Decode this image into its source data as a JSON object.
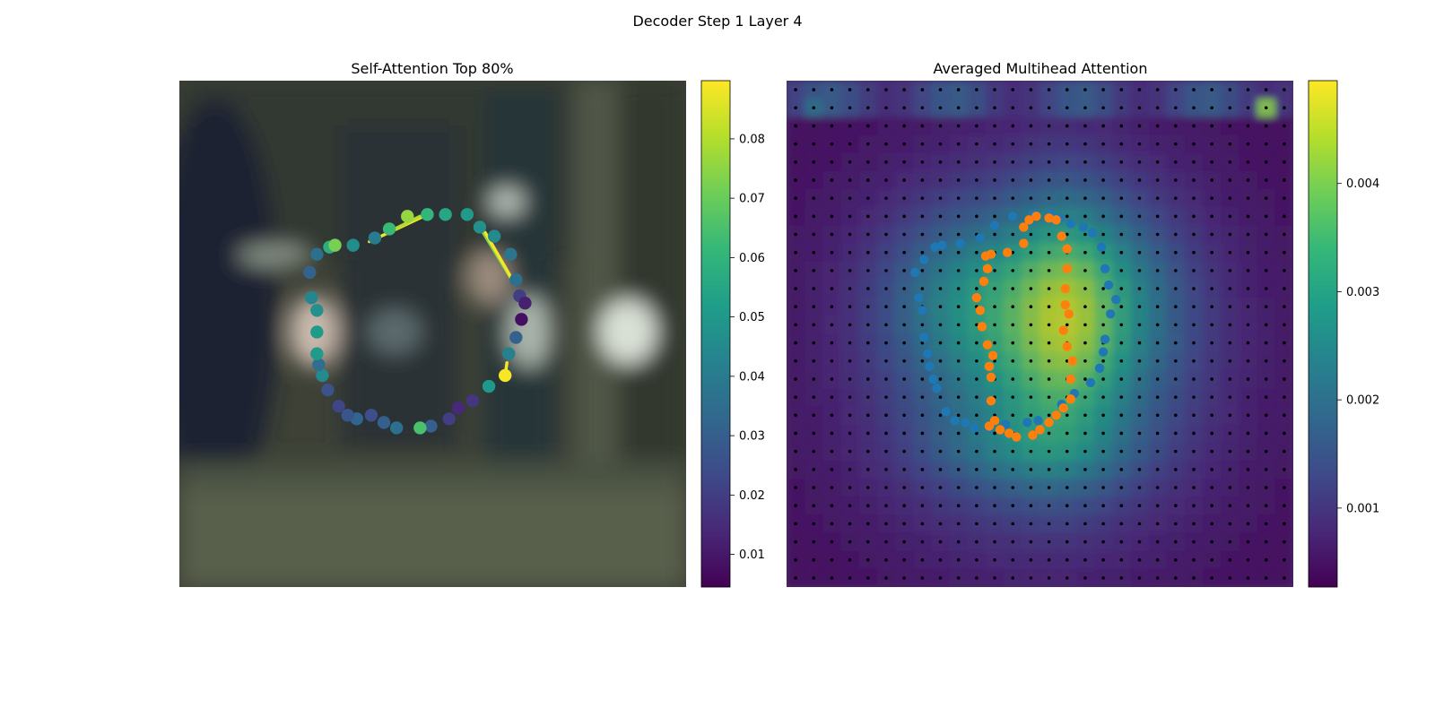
{
  "figure": {
    "suptitle": "Decoder Step 1 Layer 4"
  },
  "colormap": [
    "#440154",
    "#482878",
    "#3e4a89",
    "#31688e",
    "#26828e",
    "#1f9e89",
    "#35b779",
    "#6ece58",
    "#b5de2b",
    "#fde725"
  ],
  "chart_data": [
    {
      "type": "scatter",
      "title": "Self-Attention Top 80%",
      "background": "blurred photo of a dark industrial machine interior",
      "axes_visible": false,
      "colorbar": {
        "ticks": [
          0.01,
          0.02,
          0.03,
          0.04,
          0.05,
          0.06,
          0.07,
          0.08
        ],
        "range": [
          0.0045,
          0.0898
        ]
      },
      "xlim": [
        0,
        28
      ],
      "ylim": [
        28,
        0
      ],
      "points": [
        {
          "x": 14.7,
          "y": 7.4,
          "v": 0.055
        },
        {
          "x": 15.9,
          "y": 7.4,
          "v": 0.051
        },
        {
          "x": 16.6,
          "y": 8.1,
          "v": 0.047
        },
        {
          "x": 17.4,
          "y": 8.6,
          "v": 0.045
        },
        {
          "x": 18.3,
          "y": 9.6,
          "v": 0.038
        },
        {
          "x": 18.6,
          "y": 11.0,
          "v": 0.036
        },
        {
          "x": 18.8,
          "y": 11.9,
          "v": 0.02
        },
        {
          "x": 19.1,
          "y": 12.3,
          "v": 0.012
        },
        {
          "x": 18.9,
          "y": 13.2,
          "v": 0.008
        },
        {
          "x": 18.6,
          "y": 14.2,
          "v": 0.031
        },
        {
          "x": 18.2,
          "y": 15.1,
          "v": 0.042
        },
        {
          "x": 18.0,
          "y": 16.3,
          "v": 0.089
        },
        {
          "x": 17.1,
          "y": 16.9,
          "v": 0.05
        },
        {
          "x": 16.2,
          "y": 17.7,
          "v": 0.018
        },
        {
          "x": 15.4,
          "y": 18.1,
          "v": 0.014
        },
        {
          "x": 14.9,
          "y": 18.7,
          "v": 0.02
        },
        {
          "x": 13.9,
          "y": 19.1,
          "v": 0.03
        },
        {
          "x": 13.3,
          "y": 19.2,
          "v": 0.065
        },
        {
          "x": 12.0,
          "y": 19.2,
          "v": 0.036
        },
        {
          "x": 11.3,
          "y": 18.9,
          "v": 0.03
        },
        {
          "x": 10.6,
          "y": 18.5,
          "v": 0.025
        },
        {
          "x": 9.8,
          "y": 18.7,
          "v": 0.032
        },
        {
          "x": 9.3,
          "y": 18.5,
          "v": 0.027
        },
        {
          "x": 8.8,
          "y": 18.0,
          "v": 0.022
        },
        {
          "x": 8.2,
          "y": 17.1,
          "v": 0.026
        },
        {
          "x": 7.9,
          "y": 16.3,
          "v": 0.045
        },
        {
          "x": 7.7,
          "y": 15.7,
          "v": 0.035
        },
        {
          "x": 7.6,
          "y": 15.1,
          "v": 0.051
        },
        {
          "x": 7.6,
          "y": 13.9,
          "v": 0.051
        },
        {
          "x": 7.6,
          "y": 12.7,
          "v": 0.047
        },
        {
          "x": 7.3,
          "y": 12.0,
          "v": 0.044
        },
        {
          "x": 7.2,
          "y": 10.6,
          "v": 0.031
        },
        {
          "x": 7.6,
          "y": 9.6,
          "v": 0.036
        },
        {
          "x": 8.3,
          "y": 9.2,
          "v": 0.058
        },
        {
          "x": 8.6,
          "y": 9.1,
          "v": 0.072
        },
        {
          "x": 9.6,
          "y": 9.1,
          "v": 0.046
        },
        {
          "x": 10.8,
          "y": 8.7,
          "v": 0.04
        },
        {
          "x": 11.6,
          "y": 8.2,
          "v": 0.062
        },
        {
          "x": 12.6,
          "y": 7.5,
          "v": 0.076
        },
        {
          "x": 13.7,
          "y": 7.4,
          "v": 0.061
        }
      ],
      "segments": [
        {
          "from": [
            10.5,
            8.9
          ],
          "to": [
            13.5,
            7.5
          ],
          "v": 0.089
        },
        {
          "from": [
            11.5,
            8.4
          ],
          "to": [
            13.3,
            7.5
          ],
          "v": 0.08
        },
        {
          "from": [
            16.6,
            8.1
          ],
          "to": [
            18.3,
            10.9
          ],
          "v": 0.072
        },
        {
          "from": [
            16.9,
            8.4
          ],
          "to": [
            18.4,
            11.0
          ],
          "v": 0.089
        },
        {
          "from": [
            18.1,
            15.6
          ],
          "to": [
            18.0,
            16.3
          ],
          "v": 0.089
        }
      ]
    },
    {
      "type": "heatmap",
      "title": "Averaged Multihead Attention",
      "axes_visible": false,
      "grid_size": [
        28,
        28
      ],
      "colorbar": {
        "ticks": [
          0.001,
          0.002,
          0.003,
          0.004
        ],
        "range": [
          0.00027,
          0.00495
        ]
      },
      "overlay_series": [
        {
          "color": "#1f77b4",
          "points": [
            [
              14.6,
              7.4
            ],
            [
              15.1,
              7.6
            ],
            [
              15.7,
              7.9
            ],
            [
              16.4,
              8.1
            ],
            [
              16.9,
              8.4
            ],
            [
              17.4,
              9.2
            ],
            [
              17.6,
              10.4
            ],
            [
              17.8,
              11.3
            ],
            [
              18.2,
              12.1
            ],
            [
              17.9,
              12.9
            ],
            [
              17.6,
              14.3
            ],
            [
              17.5,
              15.0
            ],
            [
              17.3,
              15.9
            ],
            [
              16.8,
              16.7
            ],
            [
              15.9,
              17.3
            ],
            [
              15.2,
              17.9
            ],
            [
              13.9,
              18.8
            ],
            [
              13.3,
              18.9
            ],
            [
              12.1,
              19.0
            ],
            [
              11.2,
              19.2
            ],
            [
              10.4,
              19.2
            ],
            [
              9.9,
              18.9
            ],
            [
              9.3,
              18.8
            ],
            [
              8.8,
              18.3
            ],
            [
              8.3,
              17.0
            ],
            [
              8.1,
              16.5
            ],
            [
              7.9,
              15.8
            ],
            [
              7.8,
              15.1
            ],
            [
              7.6,
              14.2
            ],
            [
              7.5,
              12.7
            ],
            [
              7.3,
              12.0
            ],
            [
              7.1,
              10.6
            ],
            [
              7.6,
              9.9
            ],
            [
              8.2,
              9.2
            ],
            [
              8.6,
              9.1
            ],
            [
              9.6,
              9.0
            ],
            [
              10.7,
              8.7
            ],
            [
              11.5,
              8.0
            ],
            [
              12.5,
              7.5
            ],
            [
              13.6,
              7.4
            ]
          ]
        },
        {
          "color": "#ff7f0e",
          "points": [
            [
              14.5,
              7.6
            ],
            [
              14.9,
              7.7
            ],
            [
              15.2,
              8.6
            ],
            [
              15.5,
              9.3
            ],
            [
              15.5,
              10.4
            ],
            [
              15.4,
              11.5
            ],
            [
              15.4,
              12.4
            ],
            [
              15.6,
              12.9
            ],
            [
              15.3,
              13.8
            ],
            [
              15.5,
              14.7
            ],
            [
              15.8,
              15.5
            ],
            [
              15.7,
              16.5
            ],
            [
              15.7,
              17.6
            ],
            [
              15.3,
              18.1
            ],
            [
              14.9,
              18.5
            ],
            [
              14.5,
              18.9
            ],
            [
              14.0,
              19.3
            ],
            [
              13.6,
              19.6
            ],
            [
              12.7,
              19.7
            ],
            [
              12.3,
              19.5
            ],
            [
              11.8,
              19.3
            ],
            [
              11.5,
              18.8
            ],
            [
              11.2,
              19.1
            ],
            [
              11.3,
              17.7
            ],
            [
              11.3,
              16.4
            ],
            [
              11.2,
              15.8
            ],
            [
              11.4,
              15.2
            ],
            [
              11.1,
              14.6
            ],
            [
              10.8,
              13.6
            ],
            [
              10.7,
              12.7
            ],
            [
              10.5,
              12.0
            ],
            [
              10.9,
              11.1
            ],
            [
              11.1,
              10.4
            ],
            [
              11.0,
              9.7
            ],
            [
              11.3,
              9.6
            ],
            [
              12.2,
              9.5
            ],
            [
              13.1,
              9.0
            ],
            [
              13.1,
              8.1
            ],
            [
              13.4,
              7.7
            ],
            [
              13.8,
              7.5
            ]
          ]
        }
      ]
    }
  ]
}
